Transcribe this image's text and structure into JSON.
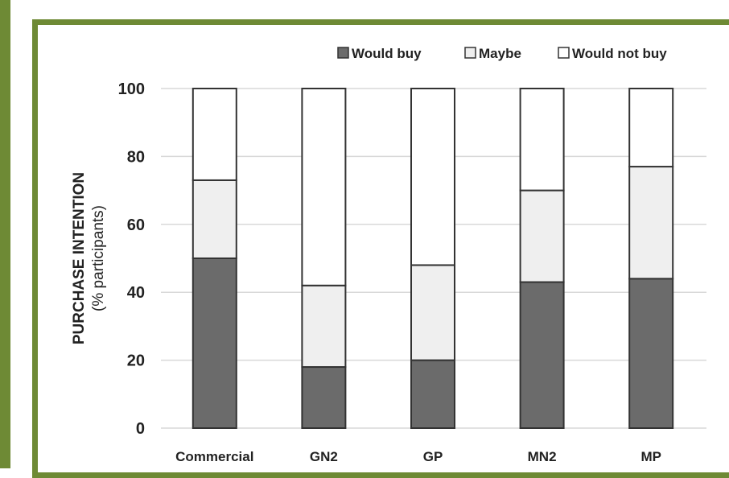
{
  "chart_data": {
    "type": "bar",
    "stacked": true,
    "categories": [
      "Commercial",
      "GN2",
      "GP",
      "MN2",
      "MP"
    ],
    "series": [
      {
        "name": "Would buy",
        "values": [
          50,
          18,
          20,
          43,
          44
        ],
        "color": "#6b6b6b"
      },
      {
        "name": "Maybe",
        "values": [
          23,
          24,
          28,
          27,
          33
        ],
        "color": "#efefef"
      },
      {
        "name": "Would not buy",
        "values": [
          27,
          58,
          52,
          30,
          23
        ],
        "color": "#ffffff"
      }
    ],
    "ylabel": "PURCHASE INTENTION",
    "ylabel_sub": "(% participants)",
    "ylim": [
      0,
      100
    ],
    "yticks": [
      0,
      20,
      40,
      60,
      80,
      100
    ],
    "grid": true,
    "legend_position": "top-right"
  }
}
